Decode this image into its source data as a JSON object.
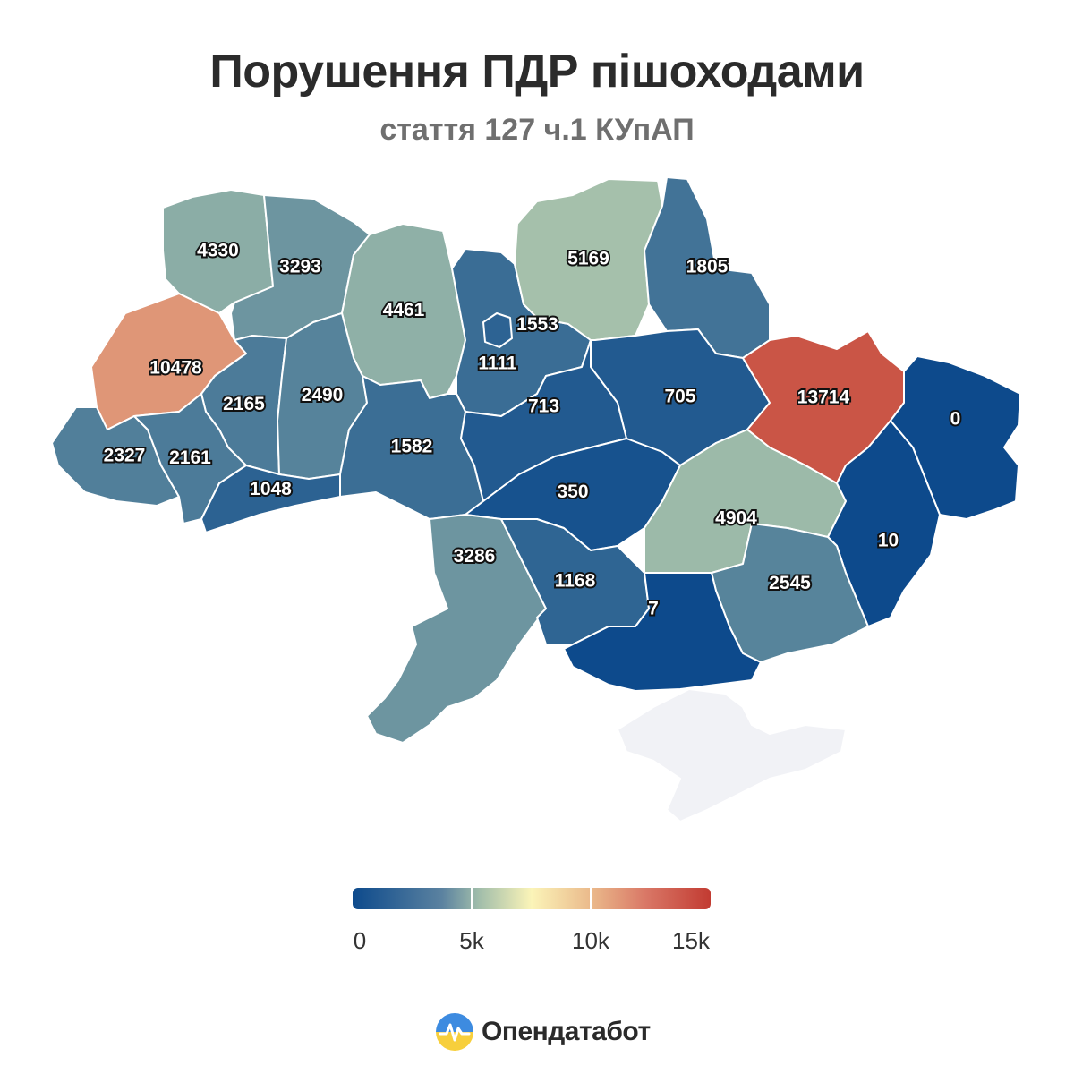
{
  "title": "Порушення ПДР пішоходами",
  "subtitle": "стаття 127 ч.1 КУпАП",
  "regions": [
    {
      "id": "volyn",
      "value": "4330"
    },
    {
      "id": "rivne",
      "value": "3293"
    },
    {
      "id": "zhytomyr",
      "value": "4461"
    },
    {
      "id": "kyiv-oblast",
      "value": "1553"
    },
    {
      "id": "chernihiv",
      "value": "5169"
    },
    {
      "id": "sumy",
      "value": "1805"
    },
    {
      "id": "lviv",
      "value": "10478"
    },
    {
      "id": "ternopil",
      "value": "2165"
    },
    {
      "id": "khmelnytskyi",
      "value": "2490"
    },
    {
      "id": "kyiv-city",
      "value": "1111"
    },
    {
      "id": "poltava",
      "value": "705"
    },
    {
      "id": "kharkiv",
      "value": "13714"
    },
    {
      "id": "luhansk",
      "value": "0"
    },
    {
      "id": "zakarpattia",
      "value": "2327"
    },
    {
      "id": "ivano-frankivsk",
      "value": "2161"
    },
    {
      "id": "vinnytsia",
      "value": "1582"
    },
    {
      "id": "cherkasy",
      "value": "713"
    },
    {
      "id": "chernivtsi",
      "value": "1048"
    },
    {
      "id": "kirovohrad",
      "value": "350"
    },
    {
      "id": "dnipropetrovsk",
      "value": "4904"
    },
    {
      "id": "donetsk",
      "value": "10"
    },
    {
      "id": "odesa",
      "value": "3286"
    },
    {
      "id": "mykolaiv",
      "value": "1168"
    },
    {
      "id": "zaporizhzhia",
      "value": "2545"
    },
    {
      "id": "kherson",
      "value": "7"
    },
    {
      "id": "crimea",
      "value": ""
    }
  ],
  "legend": {
    "ticks": [
      "0",
      "5k",
      "10k",
      "15k"
    ],
    "stops": [
      0,
      5000,
      10000,
      15000
    ],
    "colors": [
      "#0d4a8c",
      "#9fbcaa",
      "#fbf4b8",
      "#e2a07e",
      "#c23b32"
    ]
  },
  "colors": {
    "no_data": "#f1f2f6",
    "no_data_stroke": "#c7cde0"
  },
  "brand": {
    "name": "Опендатабот",
    "logo": "opendatabot-logo-icon"
  }
}
